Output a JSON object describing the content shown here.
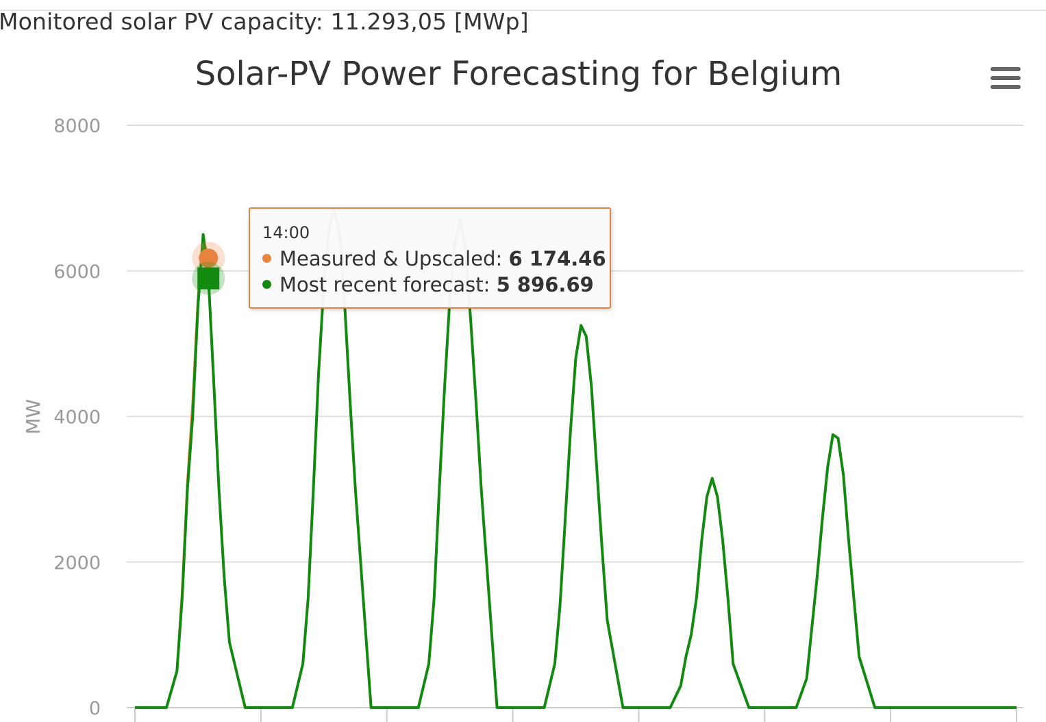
{
  "header": {
    "capacity_text": "Monitored solar PV capacity: 11.293,05 [MWp]"
  },
  "colors": {
    "measured": "#e8843f",
    "forecast": "#118a0f",
    "grid": "#e0e0e0",
    "axis_label": "#999999"
  },
  "menu": {
    "icon": "hamburger-menu-icon"
  },
  "tooltip": {
    "time": "14:00",
    "rows": [
      {
        "label": "Measured & Upscaled",
        "value": "6 174.46",
        "color": "#e8843f"
      },
      {
        "label": "Most recent forecast",
        "value": "5 896.69",
        "color": "#118a0f"
      }
    ]
  },
  "chart_data": {
    "type": "line",
    "title": "Solar-PV Power Forecasting for Belgium",
    "ylabel": "MW",
    "xlabel": "",
    "ylim": [
      0,
      8000
    ],
    "yticks": [
      0,
      2000,
      4000,
      6000,
      8000
    ],
    "grid": true,
    "x_unit": "hours",
    "xlim": [
      0,
      168
    ],
    "series": [
      {
        "name": "Most recent forecast",
        "color": "#118a0f",
        "x": [
          0,
          6,
          8,
          9,
          10,
          11,
          12,
          13,
          14,
          15,
          16,
          17,
          18,
          21,
          24,
          30,
          32,
          33,
          34,
          35,
          36,
          37,
          38,
          39,
          40,
          41,
          42,
          45,
          48,
          54,
          56,
          57,
          58,
          59,
          60,
          61,
          62,
          63,
          64,
          65,
          66,
          69,
          72,
          78,
          80,
          81,
          82,
          83,
          84,
          85,
          86,
          87,
          88,
          89,
          90,
          93,
          96,
          102,
          104,
          105,
          106,
          107,
          108,
          109,
          110,
          111,
          112,
          113,
          114,
          117,
          120,
          126,
          128,
          129,
          130,
          131,
          132,
          133,
          134,
          135,
          136,
          137,
          138,
          141,
          144,
          150,
          152,
          153,
          154,
          155,
          156,
          157,
          158,
          159,
          160,
          161,
          162,
          165,
          168
        ],
        "y": [
          0,
          0,
          500,
          1500,
          3000,
          4000,
          5500,
          6500,
          5900,
          4500,
          3000,
          1800,
          900,
          0,
          0,
          0,
          600,
          1500,
          3000,
          4600,
          5800,
          6600,
          6850,
          6500,
          5500,
          4200,
          3000,
          0,
          0,
          0,
          600,
          1500,
          3000,
          4400,
          5600,
          6400,
          6700,
          6300,
          5300,
          4200,
          3000,
          0,
          0,
          0,
          600,
          1400,
          2600,
          3800,
          4800,
          5250,
          5100,
          4400,
          3300,
          2200,
          1200,
          0,
          0,
          0,
          300,
          700,
          1000,
          1500,
          2300,
          2900,
          3150,
          2900,
          2300,
          1500,
          600,
          0,
          0,
          0,
          400,
          1100,
          1800,
          2600,
          3300,
          3750,
          3700,
          3200,
          2300,
          1500,
          700,
          0,
          0,
          0,
          0,
          0,
          0,
          0,
          0,
          0,
          0,
          0,
          0,
          0,
          0,
          0,
          0
        ]
      },
      {
        "name": "Measured & Upscaled",
        "color": "#e8843f",
        "x": [
          6,
          8,
          9,
          10,
          11,
          12,
          13,
          14
        ],
        "y": [
          0,
          500,
          1600,
          3100,
          4200,
          5600,
          6450,
          6174.46
        ]
      }
    ],
    "highlight": {
      "x": 14,
      "measured": 6174.46,
      "forecast": 5896.69
    }
  }
}
